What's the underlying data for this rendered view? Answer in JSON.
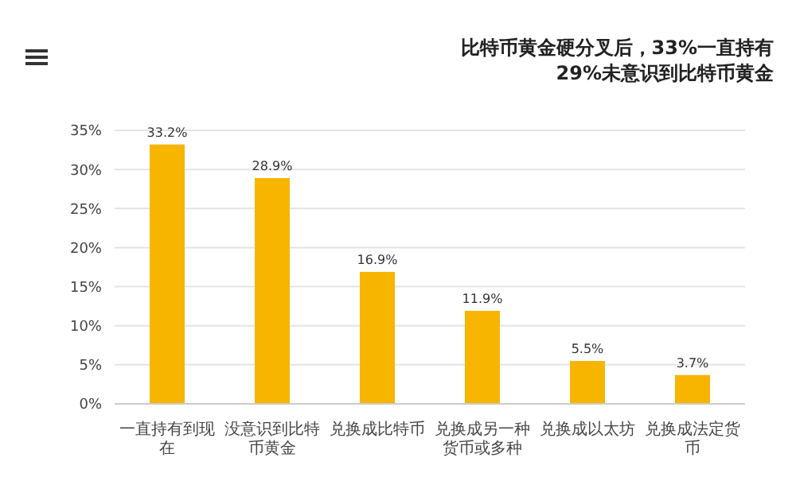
{
  "chart_data": {
    "type": "bar",
    "title": "比特币黄金硬分叉后，33%一直持有\n29%未意识到比特币黄金",
    "categories": [
      "一直持有到现在",
      "没意识到比特币黄金",
      "兑换成比特币",
      "兑换成另一种货币或多种",
      "兑换成以太坊",
      "兑换成法定货币"
    ],
    "values": [
      33.2,
      28.9,
      16.9,
      11.9,
      5.5,
      3.7
    ],
    "value_labels": [
      "33.2%",
      "28.9%",
      "16.9%",
      "11.9%",
      "5.5%",
      "3.7%"
    ],
    "color": "#f7b500",
    "ylim": [
      0,
      35
    ],
    "yticks": [
      {
        "value": 0,
        "label": "0%"
      },
      {
        "value": 5,
        "label": "5%"
      },
      {
        "value": 10,
        "label": "10%"
      },
      {
        "value": 15,
        "label": "15%"
      },
      {
        "value": 20,
        "label": "20%"
      },
      {
        "value": 25,
        "label": "25%"
      },
      {
        "value": 30,
        "label": "30%"
      },
      {
        "value": 35,
        "label": "35%"
      }
    ],
    "grid": "y"
  }
}
